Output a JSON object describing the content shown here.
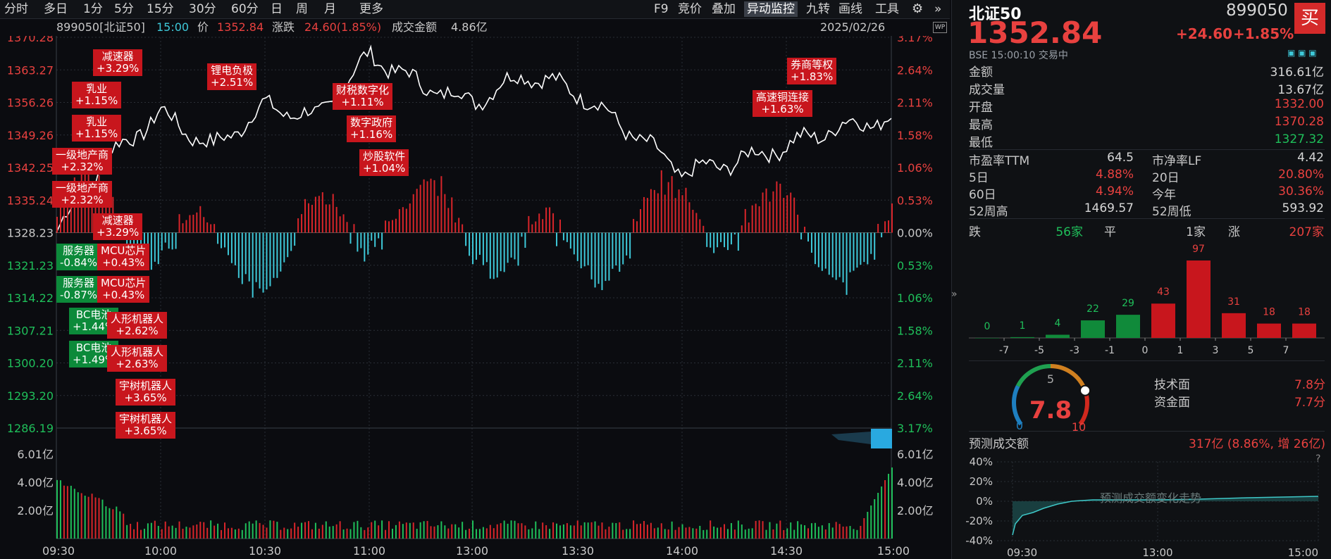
{
  "toolbar": {
    "tabs": [
      "分时",
      "多日",
      "1分",
      "5分",
      "15分",
      "30分",
      "60分",
      "日",
      "周",
      "月",
      "更多"
    ],
    "right_tabs": [
      "F9",
      "竞价",
      "叠加",
      "异动监控",
      "九转",
      "画线",
      "工具"
    ],
    "active_right": "异动监控"
  },
  "info": {
    "code_name": "899050[北证50]",
    "time": "15:00",
    "price_label": "价",
    "price": "1352.84",
    "change_label": "涨跌",
    "change": "24.60(1.85%)",
    "amount_label": "成交金额",
    "amount": "4.86亿",
    "date": "2025/02/26"
  },
  "price_axis": {
    "left": [
      "1370.28",
      "1363.27",
      "1356.26",
      "1349.26",
      "1342.25",
      "1335.24",
      "1328.23",
      "1321.23",
      "1314.22",
      "1307.21",
      "1300.20",
      "1293.20",
      "1286.19"
    ],
    "right": [
      "3.17%",
      "2.64%",
      "2.11%",
      "1.58%",
      "1.06%",
      "0.53%",
      "0.00%",
      "0.53%",
      "1.06%",
      "1.58%",
      "2.11%",
      "2.64%",
      "3.17%"
    ]
  },
  "volume_axis": [
    "6.01亿",
    "4.00亿",
    "2.00亿"
  ],
  "time_axis": [
    "09:30",
    "10:00",
    "10:30",
    "11:00",
    "13:00",
    "13:30",
    "14:00",
    "14:30",
    "15:00"
  ],
  "annotations": [
    {
      "name": "减速器",
      "pct": "+3.29%",
      "color": "red"
    },
    {
      "name": "乳业",
      "pct": "+1.15%",
      "color": "red"
    },
    {
      "name": "乳业",
      "pct": "+1.15%",
      "color": "red"
    },
    {
      "name": "一级地产商",
      "pct": "+2.32%",
      "color": "red"
    },
    {
      "name": "一级地产商",
      "pct": "+2.32%",
      "color": "red"
    },
    {
      "name": "减速器",
      "pct": "+3.29%",
      "color": "red"
    },
    {
      "name": "服务器",
      "pct": "-0.84%",
      "color": "green"
    },
    {
      "name": "服务器",
      "pct": "-0.87%",
      "color": "green"
    },
    {
      "name": "MCU芯片",
      "pct": "+0.43%",
      "color": "red"
    },
    {
      "name": "MCU芯片",
      "pct": "+0.43%",
      "color": "red"
    },
    {
      "name": "BC电池",
      "pct": "+1.44%",
      "color": "green"
    },
    {
      "name": "BC电池",
      "pct": "+1.49%",
      "color": "green"
    },
    {
      "name": "人形机器人",
      "pct": "+2.62%",
      "color": "red"
    },
    {
      "name": "人形机器人",
      "pct": "+2.63%",
      "color": "red"
    },
    {
      "name": "宇树机器人",
      "pct": "+3.65%",
      "color": "red"
    },
    {
      "name": "宇树机器人",
      "pct": "+3.65%",
      "color": "red"
    },
    {
      "name": "锂电负极",
      "pct": "+2.51%",
      "color": "red"
    },
    {
      "name": "财税数字化",
      "pct": "+1.11%",
      "color": "red"
    },
    {
      "name": "数字政府",
      "pct": "+1.16%",
      "color": "red"
    },
    {
      "name": "炒股软件",
      "pct": "+1.04%",
      "color": "red"
    },
    {
      "name": "高速铜连接",
      "pct": "+1.63%",
      "color": "red"
    },
    {
      "name": "券商等权",
      "pct": "+1.83%",
      "color": "red"
    }
  ],
  "chart_data": {
    "type": "line",
    "title": "",
    "x": [
      "09:30",
      "09:45",
      "10:00",
      "10:15",
      "10:30",
      "10:45",
      "11:00",
      "11:15",
      "11:30/13:00",
      "13:15",
      "13:30",
      "13:45",
      "14:00",
      "14:15",
      "14:30",
      "14:45",
      "15:00"
    ],
    "series": [
      {
        "values": [
          1328.23,
          1344.5,
          1354.0,
          1346.5,
          1355.5,
          1353.0,
          1366.5,
          1360.0,
          1356.5,
          1362.5,
          1358.5,
          1350.0,
          1341.0,
          1343.5,
          1347.0,
          1351.0,
          1352.84
        ]
      }
    ],
    "ylim": [
      1286.19,
      1370.28
    ],
    "prev_close": 1328.23
  },
  "right": {
    "name": "北证50",
    "code": "899050",
    "price": "1352.84",
    "change": "+24.60",
    "change_pct": "+1.85%",
    "buy_label": "买",
    "status": "BSE 15:00:10 交易中",
    "rows": [
      {
        "k": "金额",
        "v": "316.61亿",
        "c": "#d6d6d6"
      },
      {
        "k": "成交量",
        "v": "13.67亿",
        "c": "#d6d6d6"
      },
      {
        "k": "开盘",
        "v": "1332.00",
        "c": "#e8413f"
      },
      {
        "k": "最高",
        "v": "1370.28",
        "c": "#e8413f"
      },
      {
        "k": "最低",
        "v": "1327.32",
        "c": "#1fbf5a"
      }
    ],
    "stats": [
      {
        "k1": "市盈率TTM",
        "v1": "64.5",
        "c1": "#d6d6d6",
        "k2": "市净率LF",
        "v2": "4.42",
        "c2": "#d6d6d6"
      },
      {
        "k1": "5日",
        "v1": "4.88%",
        "c1": "#e8413f",
        "k2": "20日",
        "v2": "20.80%",
        "c2": "#e8413f"
      },
      {
        "k1": "60日",
        "v1": "4.94%",
        "c1": "#e8413f",
        "k2": "今年",
        "v2": "30.36%",
        "c2": "#e8413f"
      },
      {
        "k1": "52周高",
        "v1": "1469.57",
        "c1": "#d6d6d6",
        "k2": "52周低",
        "v2": "593.92",
        "c2": "#d6d6d6"
      }
    ],
    "breadth": {
      "down_label": "跌",
      "down": "56家",
      "flat_label": "平",
      "flat": "1家",
      "up_label": "涨",
      "up": "207家"
    },
    "dist": {
      "values": [
        0,
        1,
        4,
        22,
        29,
        43,
        97,
        31,
        18,
        18
      ],
      "ticks": [
        "-7",
        "-5",
        "-3",
        "-1",
        "0",
        "1",
        "3",
        "5",
        "7"
      ]
    },
    "score": {
      "value": "7.8",
      "min": "0",
      "mid": "5",
      "max": "10",
      "tech_label": "技术面",
      "tech": "7.8分",
      "fund_label": "资金面",
      "fund": "7.7分"
    },
    "forecast": {
      "label": "预测成交额",
      "value": "317亿 (8.86%, 增 26亿)",
      "help": "?",
      "watermark": "预测成交额变化走势",
      "yticks": [
        "40%",
        "20%",
        "0%",
        "-20%",
        "-40%"
      ],
      "xticks": [
        "09:30",
        "13:00",
        "15:00"
      ]
    }
  }
}
